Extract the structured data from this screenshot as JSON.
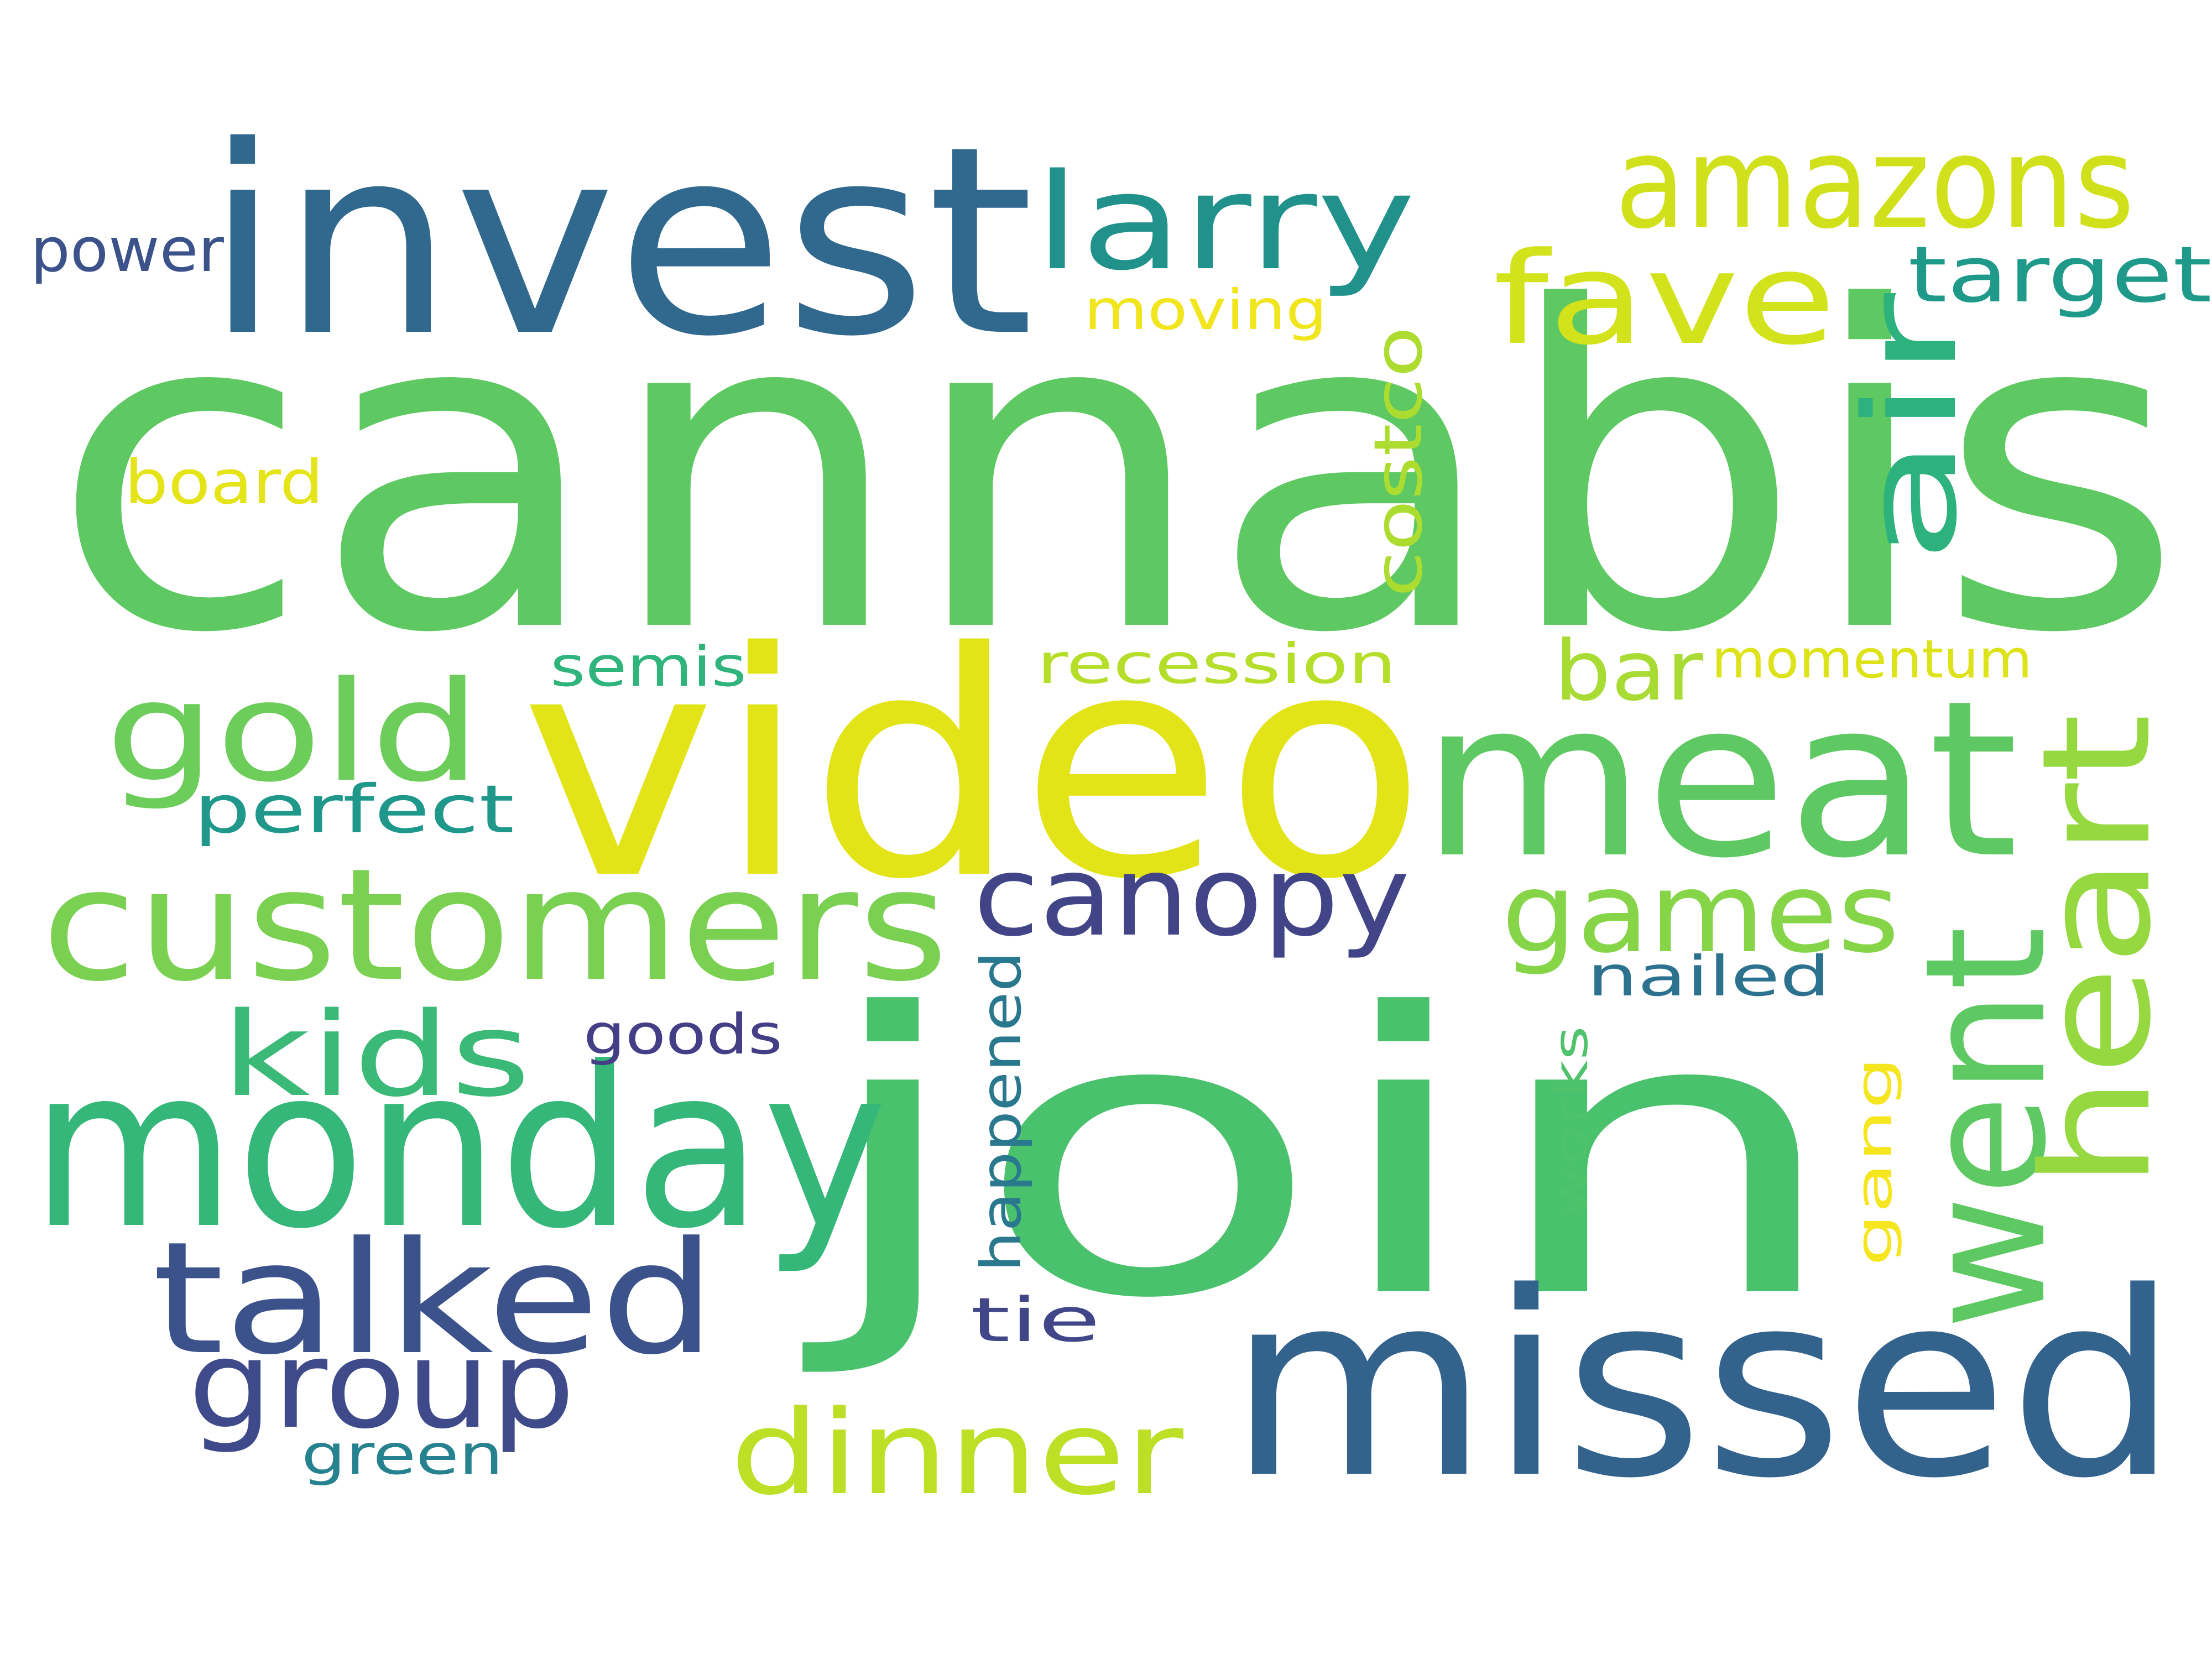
{
  "words": [
    {
      "text": "cannabis",
      "color": "#5ec962"
    },
    {
      "text": "join",
      "color": "#4ac16d"
    },
    {
      "text": "video",
      "color": "#e2e418"
    },
    {
      "text": "invest",
      "color": "#31688e"
    },
    {
      "text": "missed",
      "color": "#33638d"
    },
    {
      "text": "meat",
      "color": "#5ec962"
    },
    {
      "text": "monday",
      "color": "#35b779"
    },
    {
      "text": "customers",
      "color": "#7ad151"
    },
    {
      "text": "went",
      "color": "#5ec962"
    },
    {
      "text": "heart",
      "color": "#95d840"
    },
    {
      "text": "talked",
      "color": "#3b528b"
    },
    {
      "text": "amazons",
      "color": "#d0e11c"
    },
    {
      "text": "larry",
      "color": "#21918c"
    },
    {
      "text": "gold",
      "color": "#6ccd5a"
    },
    {
      "text": "air",
      "color": "#2db27d"
    },
    {
      "text": "fave",
      "color": "#d2e21b"
    },
    {
      "text": "canopy",
      "color": "#414487"
    },
    {
      "text": "games",
      "color": "#86d549"
    },
    {
      "text": "group",
      "color": "#3e4a89"
    },
    {
      "text": "dinner",
      "color": "#bddf26"
    },
    {
      "text": "kids",
      "color": "#3aba76"
    },
    {
      "text": "target",
      "color": "#1f9a8a"
    },
    {
      "text": "costco",
      "color": "#addc30"
    },
    {
      "text": "bar",
      "color": "#a8db34"
    },
    {
      "text": "power",
      "color": "#3b528b"
    },
    {
      "text": "board",
      "color": "#e5e419"
    },
    {
      "text": "moving",
      "color": "#f1e51d"
    },
    {
      "text": "recession",
      "color": "#b5de2b"
    },
    {
      "text": "semis",
      "color": "#2fb47c"
    },
    {
      "text": "momentum",
      "color": "#dde318"
    },
    {
      "text": "perfect",
      "color": "#1f988b"
    },
    {
      "text": "nailed",
      "color": "#2c728e"
    },
    {
      "text": "goods",
      "color": "#433e85"
    },
    {
      "text": "happened",
      "color": "#2a788e"
    },
    {
      "text": "works",
      "color": "#4ec36b"
    },
    {
      "text": "gang",
      "color": "#f6e620"
    },
    {
      "text": "tie",
      "color": "#404688"
    },
    {
      "text": "green",
      "color": "#26828e"
    }
  ]
}
